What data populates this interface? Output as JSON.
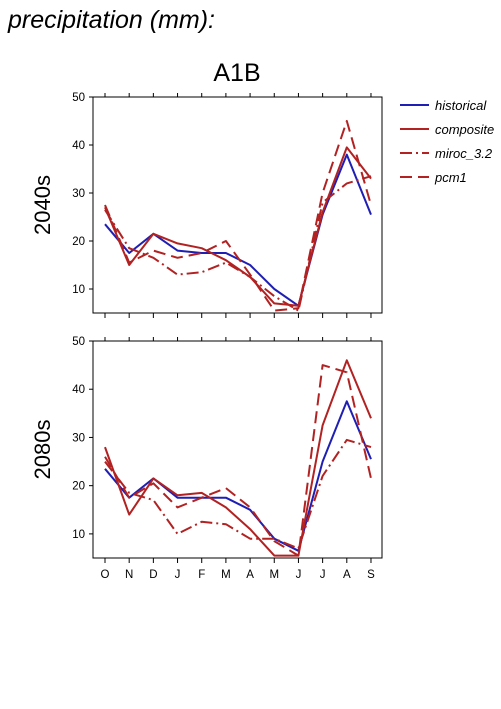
{
  "page": {
    "title": "precipitation (mm):",
    "scenario": "A1B"
  },
  "legend": [
    {
      "name": "historical",
      "color": "#1f1fb4",
      "dash": "solid"
    },
    {
      "name": "composite",
      "color": "#b22222",
      "dash": "solid"
    },
    {
      "name": "miroc_3.2",
      "color": "#b22222",
      "dash": "dashdot"
    },
    {
      "name": "pcm1",
      "color": "#b22222",
      "dash": "dash"
    }
  ],
  "chart_data": [
    {
      "type": "line",
      "ylabel": "2040s",
      "categories": [
        "O",
        "N",
        "D",
        "J",
        "F",
        "M",
        "A",
        "M",
        "J",
        "J",
        "A",
        "S"
      ],
      "ylim": [
        5,
        50
      ],
      "yticks": [
        10,
        20,
        30,
        40,
        50
      ],
      "grid": false,
      "series": [
        {
          "name": "historical",
          "values": [
            23.5,
            17.5,
            21.5,
            18,
            17.5,
            17.5,
            15,
            10,
            6.5,
            25.5,
            38,
            25.5
          ]
        },
        {
          "name": "composite",
          "values": [
            27,
            15,
            21.5,
            19.5,
            18.5,
            16,
            12.5,
            7,
            6.5,
            26,
            39.5,
            33
          ]
        },
        {
          "name": "miroc_3.2",
          "values": [
            26.5,
            18.5,
            16.5,
            13,
            13.5,
            15.5,
            12.5,
            8.5,
            5.5,
            28,
            32,
            33.5
          ]
        },
        {
          "name": "pcm1",
          "values": [
            27.5,
            15.5,
            18,
            16.5,
            17.5,
            20,
            13,
            5.5,
            6,
            30,
            45,
            27.5
          ]
        }
      ]
    },
    {
      "type": "line",
      "ylabel": "2080s",
      "categories": [
        "O",
        "N",
        "D",
        "J",
        "F",
        "M",
        "A",
        "M",
        "J",
        "J",
        "A",
        "S"
      ],
      "ylim": [
        5,
        50
      ],
      "yticks": [
        10,
        20,
        30,
        40,
        50
      ],
      "grid": false,
      "series": [
        {
          "name": "historical",
          "values": [
            23.5,
            17.5,
            21.5,
            17.5,
            17.5,
            17.5,
            15,
            9,
            6.5,
            25,
            37.5,
            25.5
          ]
        },
        {
          "name": "composite",
          "values": [
            28,
            14,
            21.5,
            18,
            18.5,
            15.5,
            11,
            5.5,
            5.5,
            32.5,
            46,
            34
          ]
        },
        {
          "name": "miroc_3.2",
          "values": [
            25,
            18.5,
            17,
            10,
            12.5,
            12,
            9,
            9,
            7,
            22,
            29.5,
            28
          ]
        },
        {
          "name": "pcm1",
          "values": [
            26,
            17.5,
            20.5,
            15.5,
            17.5,
            19.5,
            15.5,
            8.5,
            5.5,
            45,
            43.5,
            21.5
          ]
        }
      ]
    }
  ]
}
